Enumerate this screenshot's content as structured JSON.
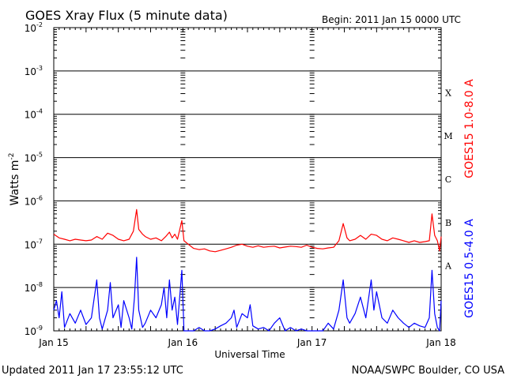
{
  "chart_data": {
    "type": "line",
    "title": "GOES Xray Flux (5 minute data)",
    "begin_label": "Begin:  2011 Jan 15 0000 UTC",
    "xlabel": "Universal Time",
    "ylabel_base": "Watts m",
    "ylabel_exp": "-2",
    "updated": "Updated 2011 Jan 17 23:55:12 UTC",
    "source": "NOAA/SWPC Boulder, CO USA",
    "x_range_hours": [
      0,
      72
    ],
    "x_ticks": [
      {
        "hour": 0,
        "label": "Jan 15"
      },
      {
        "hour": 24,
        "label": "Jan 16"
      },
      {
        "hour": 48,
        "label": "Jan 17"
      },
      {
        "hour": 72,
        "label": "Jan 18"
      }
    ],
    "y_scale": "log",
    "y_range": [
      1e-09,
      0.01
    ],
    "y_tick_base": "10",
    "y_ticks": [
      {
        "exp": -9,
        "label": "-9"
      },
      {
        "exp": -8,
        "label": "-8"
      },
      {
        "exp": -7,
        "label": "-7"
      },
      {
        "exp": -6,
        "label": "-6"
      },
      {
        "exp": -5,
        "label": "-5"
      },
      {
        "exp": -4,
        "label": "-4"
      },
      {
        "exp": -3,
        "label": "-3"
      },
      {
        "exp": -2,
        "label": "-2"
      }
    ],
    "flare_classes": [
      {
        "label": "A",
        "exp": -7.5
      },
      {
        "label": "B",
        "exp": -6.5
      },
      {
        "label": "C",
        "exp": -5.5
      },
      {
        "label": "M",
        "exp": -4.5
      },
      {
        "label": "X",
        "exp": -3.5
      }
    ],
    "series": [
      {
        "name": "GOES15 1.0-8.0 A",
        "color": "#ff0000",
        "points": [
          [
            0,
            1.7e-07
          ],
          [
            1,
            1.4e-07
          ],
          [
            2,
            1.3e-07
          ],
          [
            3,
            1.2e-07
          ],
          [
            4,
            1.3e-07
          ],
          [
            5,
            1.25e-07
          ],
          [
            6,
            1.2e-07
          ],
          [
            7,
            1.25e-07
          ],
          [
            8,
            1.5e-07
          ],
          [
            9,
            1.3e-07
          ],
          [
            10,
            1.8e-07
          ],
          [
            11,
            1.6e-07
          ],
          [
            12,
            1.3e-07
          ],
          [
            13,
            1.2e-07
          ],
          [
            14,
            1.3e-07
          ],
          [
            14.8,
            2e-07
          ],
          [
            15.4,
            6.3e-07
          ],
          [
            15.8,
            2.2e-07
          ],
          [
            16.5,
            1.7e-07
          ],
          [
            17,
            1.5e-07
          ],
          [
            18,
            1.3e-07
          ],
          [
            19,
            1.4e-07
          ],
          [
            20,
            1.2e-07
          ],
          [
            20.8,
            1.5e-07
          ],
          [
            21.5,
            1.9e-07
          ],
          [
            22,
            1.4e-07
          ],
          [
            22.5,
            1.7e-07
          ],
          [
            23,
            1.3e-07
          ],
          [
            23.8,
            3.5e-07
          ],
          [
            24.2,
            1.2e-07
          ],
          [
            25,
            1e-07
          ],
          [
            26,
            8e-08
          ],
          [
            27,
            7.5e-08
          ],
          [
            28,
            7.8e-08
          ],
          [
            29,
            7e-08
          ],
          [
            30,
            6.7e-08
          ],
          [
            31,
            7.2e-08
          ],
          [
            32,
            7.8e-08
          ],
          [
            33,
            8.5e-08
          ],
          [
            34,
            9.5e-08
          ],
          [
            35,
            1e-07
          ],
          [
            36,
            9e-08
          ],
          [
            37,
            8.5e-08
          ],
          [
            38,
            9.2e-08
          ],
          [
            39,
            8.5e-08
          ],
          [
            40,
            8.8e-08
          ],
          [
            41,
            9e-08
          ],
          [
            42,
            8.2e-08
          ],
          [
            43,
            8.6e-08
          ],
          [
            44,
            9e-08
          ],
          [
            45,
            8.8e-08
          ],
          [
            46,
            8.5e-08
          ],
          [
            47,
            9.5e-08
          ],
          [
            48,
            8.5e-08
          ],
          [
            49,
            8e-08
          ],
          [
            50,
            7.8e-08
          ],
          [
            51,
            8.2e-08
          ],
          [
            52,
            8.5e-08
          ],
          [
            53,
            1.2e-07
          ],
          [
            53.8,
            3e-07
          ],
          [
            54.5,
            1.4e-07
          ],
          [
            55,
            1.2e-07
          ],
          [
            56,
            1.3e-07
          ],
          [
            57,
            1.6e-07
          ],
          [
            58,
            1.3e-07
          ],
          [
            59,
            1.7e-07
          ],
          [
            60,
            1.6e-07
          ],
          [
            61,
            1.3e-07
          ],
          [
            62,
            1.2e-07
          ],
          [
            63,
            1.4e-07
          ],
          [
            64,
            1.3e-07
          ],
          [
            65,
            1.2e-07
          ],
          [
            66,
            1.1e-07
          ],
          [
            67,
            1.2e-07
          ],
          [
            68,
            1.1e-07
          ],
          [
            69,
            1.15e-07
          ],
          [
            69.8,
            1.2e-07
          ],
          [
            70.3,
            5e-07
          ],
          [
            70.8,
            1.6e-07
          ],
          [
            71.3,
            1.2e-07
          ],
          [
            71.7,
            7e-08
          ],
          [
            72,
            1.5e-07
          ]
        ]
      },
      {
        "name": "GOES15 0.5-4.0 A",
        "color": "#0000ff",
        "points": [
          [
            0,
            3e-09
          ],
          [
            0.5,
            5e-09
          ],
          [
            1,
            2e-09
          ],
          [
            1.5,
            8e-09
          ],
          [
            2,
            1.2e-09
          ],
          [
            3,
            2.5e-09
          ],
          [
            4,
            1.5e-09
          ],
          [
            5,
            3e-09
          ],
          [
            6,
            1.4e-09
          ],
          [
            7,
            2e-09
          ],
          [
            8,
            1.5e-08
          ],
          [
            8.5,
            2e-09
          ],
          [
            9,
            1.1e-09
          ],
          [
            10,
            3e-09
          ],
          [
            10.5,
            1.3e-08
          ],
          [
            11,
            2e-09
          ],
          [
            12,
            4e-09
          ],
          [
            12.5,
            1.2e-09
          ],
          [
            13,
            5e-09
          ],
          [
            14,
            2e-09
          ],
          [
            14.5,
            1.1e-09
          ],
          [
            15,
            6e-09
          ],
          [
            15.4,
            5e-08
          ],
          [
            15.8,
            3e-09
          ],
          [
            16.5,
            1.2e-09
          ],
          [
            17,
            1.5e-09
          ],
          [
            18,
            3e-09
          ],
          [
            19,
            2e-09
          ],
          [
            20,
            4e-09
          ],
          [
            20.5,
            1e-08
          ],
          [
            21,
            2e-09
          ],
          [
            21.5,
            1.5e-08
          ],
          [
            22,
            3e-09
          ],
          [
            22.5,
            6e-09
          ],
          [
            23,
            1.4e-09
          ],
          [
            23.8,
            2.5e-08
          ],
          [
            24.2,
            1e-09
          ],
          [
            25,
            1e-09
          ],
          [
            26,
            1e-09
          ],
          [
            27,
            1.2e-09
          ],
          [
            28,
            1e-09
          ],
          [
            29,
            1e-09
          ],
          [
            30,
            1.1e-09
          ],
          [
            31,
            1.3e-09
          ],
          [
            32,
            1.5e-09
          ],
          [
            33,
            2e-09
          ],
          [
            33.5,
            3e-09
          ],
          [
            34,
            1.2e-09
          ],
          [
            35,
            2.5e-09
          ],
          [
            36,
            2e-09
          ],
          [
            36.5,
            4e-09
          ],
          [
            37,
            1.3e-09
          ],
          [
            38,
            1.1e-09
          ],
          [
            39,
            1.2e-09
          ],
          [
            40,
            1e-09
          ],
          [
            41,
            1.5e-09
          ],
          [
            42,
            2e-09
          ],
          [
            43,
            1e-09
          ],
          [
            44,
            1.2e-09
          ],
          [
            45,
            1e-09
          ],
          [
            46,
            1.1e-09
          ],
          [
            47,
            1e-09
          ],
          [
            48,
            1e-09
          ],
          [
            49,
            1e-09
          ],
          [
            50,
            1e-09
          ],
          [
            51,
            1.5e-09
          ],
          [
            52,
            1.1e-09
          ],
          [
            53,
            3e-09
          ],
          [
            53.8,
            1.5e-08
          ],
          [
            54.5,
            2e-09
          ],
          [
            55,
            1.5e-09
          ],
          [
            56,
            2.5e-09
          ],
          [
            57,
            6e-09
          ],
          [
            58,
            2e-09
          ],
          [
            59,
            1.5e-08
          ],
          [
            59.5,
            3e-09
          ],
          [
            60,
            8e-09
          ],
          [
            61,
            2e-09
          ],
          [
            62,
            1.5e-09
          ],
          [
            63,
            3e-09
          ],
          [
            64,
            2e-09
          ],
          [
            65,
            1.5e-09
          ],
          [
            66,
            1.2e-09
          ],
          [
            67,
            1.5e-09
          ],
          [
            68,
            1.3e-09
          ],
          [
            69,
            1.2e-09
          ],
          [
            69.8,
            2e-09
          ],
          [
            70.3,
            2.5e-08
          ],
          [
            70.8,
            2.5e-09
          ],
          [
            71.3,
            1.2e-09
          ],
          [
            71.7,
            1e-09
          ],
          [
            72,
            5e-09
          ]
        ]
      }
    ]
  }
}
